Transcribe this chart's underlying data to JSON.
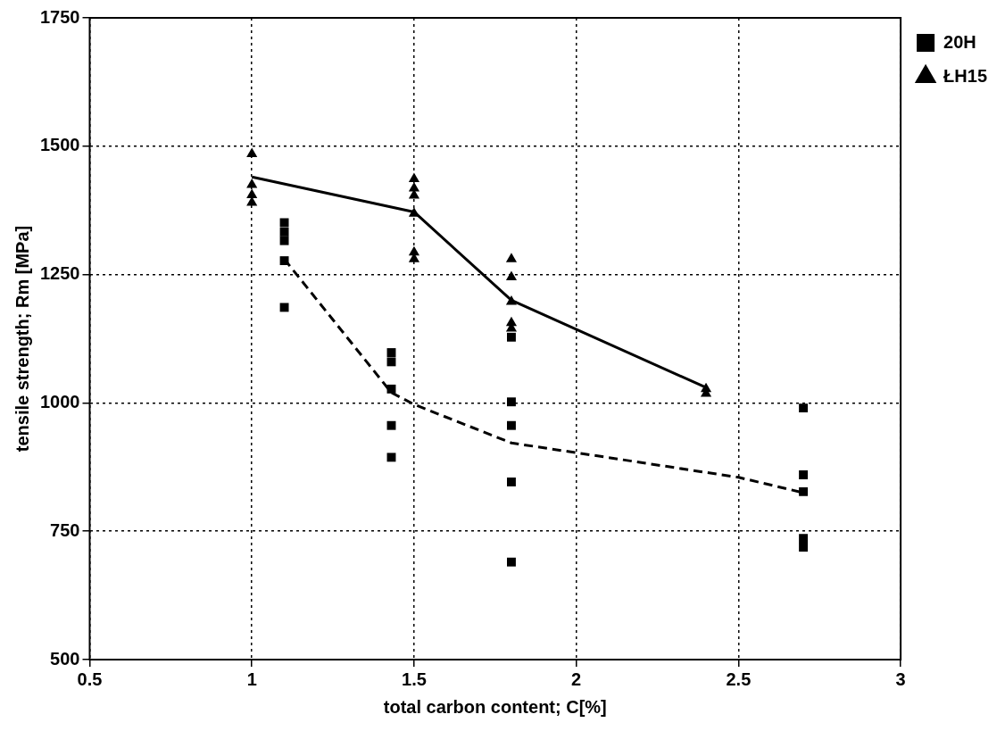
{
  "chart_data": {
    "type": "scatter",
    "xlabel": "total carbon content; C[%]",
    "ylabel": "tensile strength; Rm [MPa]",
    "xlim": [
      0.5,
      3
    ],
    "xticks": [
      0.5,
      1,
      1.5,
      2,
      2.5,
      3
    ],
    "ylim": [
      500,
      1750
    ],
    "yticks": [
      500,
      750,
      1000,
      1250,
      1500,
      1750
    ],
    "grid": true,
    "legend": "top right",
    "series": [
      {
        "name": "20H",
        "color": "#000000",
        "marker": "square",
        "x": [
          1.1,
          1.1,
          1.1,
          1.1,
          1.1,
          1.43,
          1.43,
          1.43,
          1.43,
          1.43,
          1.8,
          1.8,
          1.8,
          1.8,
          1.8,
          2.7,
          2.7,
          2.7,
          2.7,
          2.7
        ],
        "values": [
          1351,
          1333,
          1316,
          1277,
          1186,
          1098,
          1080,
          1027,
          956,
          894,
          1128,
          1002,
          956,
          846,
          690,
          990,
          860,
          827,
          736,
          719
        ]
      },
      {
        "name": "ŁH15",
        "color": "#000000",
        "marker": "triangle",
        "x": [
          1,
          1,
          1,
          1,
          1.5,
          1.5,
          1.5,
          1.5,
          1.5,
          1.5,
          1.8,
          1.8,
          1.8,
          1.8,
          1.8,
          2.4,
          2.4
        ],
        "values": [
          1485,
          1425,
          1405,
          1390,
          1436,
          1418,
          1404,
          1369,
          1293,
          1280,
          1280,
          1245,
          1197,
          1156,
          1145,
          1027,
          1018
        ]
      },
      {
        "type": "line",
        "color": "#000000",
        "marker": "none",
        "line_style": "solid",
        "x": [
          1,
          1.5,
          1.8,
          2.4
        ],
        "values": [
          1440,
          1372,
          1200,
          1030
        ]
      },
      {
        "type": "line",
        "color": "#000000",
        "marker": "none",
        "line_style": "dashed",
        "x": [
          1.1,
          1.43,
          1.5,
          1.8,
          2,
          2.5,
          2.7
        ],
        "values": [
          1280,
          1020,
          997,
          922,
          903,
          855,
          825
        ]
      }
    ]
  }
}
